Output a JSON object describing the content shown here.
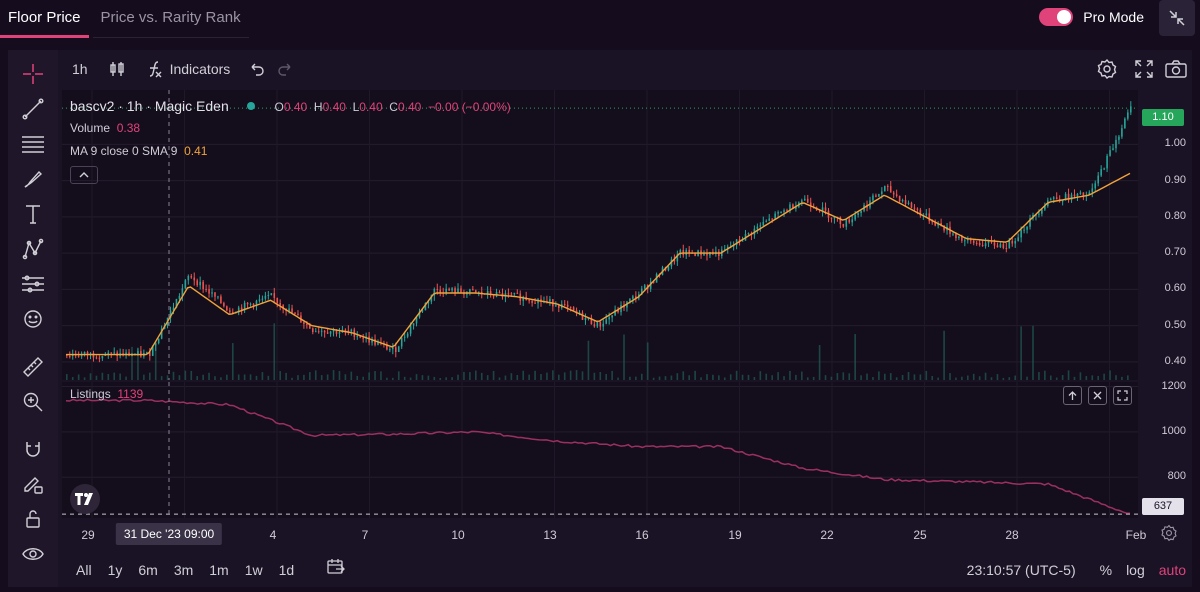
{
  "tabs": [
    {
      "label": "Floor Price",
      "active": true
    },
    {
      "label": "Price vs. Rarity Rank",
      "active": false
    }
  ],
  "pro_mode": {
    "label": "Pro Mode",
    "on": true
  },
  "toolbar": {
    "interval": "1h",
    "indicators_label": "Indicators"
  },
  "left_rail_icons": [
    "crosshair-icon",
    "trend-line-icon",
    "fib-icon",
    "brush-icon",
    "text-icon",
    "pattern-icon",
    "prediction-icon",
    "emoji-icon",
    "ruler-icon",
    "zoom-in-icon",
    "magnet-icon",
    "lock-drawing-icon",
    "lock-icon",
    "eye-icon"
  ],
  "legend": {
    "symbol": "bascv2 · 1h · Magic Eden",
    "ohlc": {
      "O": "0.40",
      "H": "0.40",
      "L": "0.40",
      "C": "0.40",
      "change": "−0.00 (−0.00%)"
    },
    "volume_label": "Volume",
    "volume_value": "0.38",
    "ma_label": "MA 9 close 0 SMA 9",
    "ma_value": "0.41"
  },
  "listings_legend": {
    "label": "Listings",
    "value": "1139"
  },
  "price_axis": {
    "ticks": [
      "1.00",
      "0.90",
      "0.80",
      "0.70",
      "0.60",
      "0.50",
      "0.40"
    ],
    "current": "1.10"
  },
  "listings_axis": {
    "ticks": [
      "1200",
      "1000",
      "800"
    ],
    "current": "637"
  },
  "time_axis": {
    "labels": [
      "29",
      "4",
      "7",
      "10",
      "13",
      "16",
      "19",
      "22",
      "25",
      "28",
      "Feb"
    ],
    "crosshair_label": "31 Dec '23   09:00"
  },
  "bottom_bar": {
    "ranges": [
      "All",
      "1y",
      "6m",
      "3m",
      "1m",
      "1w",
      "1d"
    ],
    "clock": "23:10:57 (UTC-5)",
    "percent": "%",
    "log": "log",
    "auto": "auto"
  },
  "colors": {
    "accent": "#e0427a",
    "up": "#26a69a",
    "down": "#ef5350",
    "ma": "#f1a33a",
    "listings_line": "#9b3060",
    "current_tag": "#26a65b"
  },
  "chart_data": [
    {
      "type": "line",
      "series": [
        {
          "name": "bascv2 · 1h · Magic Eden",
          "x": [
            "29",
            "31",
            "1",
            "3",
            "4",
            "6",
            "7",
            "9",
            "10",
            "12",
            "13",
            "15",
            "16",
            "18",
            "19",
            "21",
            "22",
            "23",
            "24",
            "25",
            "26",
            "27",
            "28",
            "29",
            "30",
            "31",
            "Feb"
          ],
          "values": [
            0.42,
            0.42,
            0.42,
            0.64,
            0.54,
            0.58,
            0.49,
            0.48,
            0.43,
            0.6,
            0.59,
            0.58,
            0.56,
            0.5,
            0.59,
            0.7,
            0.7,
            0.78,
            0.85,
            0.78,
            0.88,
            0.8,
            0.73,
            0.72,
            0.85,
            0.86,
            1.1
          ]
        },
        {
          "name": "MA 9 close 0 SMA 9",
          "x": [
            "29",
            "31",
            "1",
            "3",
            "4",
            "6",
            "7",
            "9",
            "10",
            "12",
            "13",
            "15",
            "16",
            "18",
            "19",
            "21",
            "22",
            "23",
            "24",
            "25",
            "26",
            "27",
            "28",
            "29",
            "30",
            "31",
            "Feb"
          ],
          "values": [
            0.42,
            0.42,
            0.42,
            0.61,
            0.53,
            0.57,
            0.5,
            0.48,
            0.44,
            0.59,
            0.59,
            0.58,
            0.56,
            0.51,
            0.58,
            0.7,
            0.7,
            0.77,
            0.84,
            0.79,
            0.86,
            0.8,
            0.74,
            0.73,
            0.84,
            0.86,
            0.92
          ]
        }
      ],
      "ylim": [
        0.35,
        1.15
      ]
    },
    {
      "type": "line",
      "series": [
        {
          "name": "Listings",
          "x": [
            "29",
            "31",
            "1",
            "3",
            "4",
            "7",
            "10",
            "13",
            "16",
            "19",
            "22",
            "25",
            "28",
            "Feb"
          ],
          "values": [
            1139,
            1139,
            1120,
            985,
            990,
            1000,
            960,
            935,
            935,
            840,
            790,
            780,
            770,
            637
          ]
        }
      ],
      "ylim": [
        620,
        1220
      ]
    }
  ]
}
